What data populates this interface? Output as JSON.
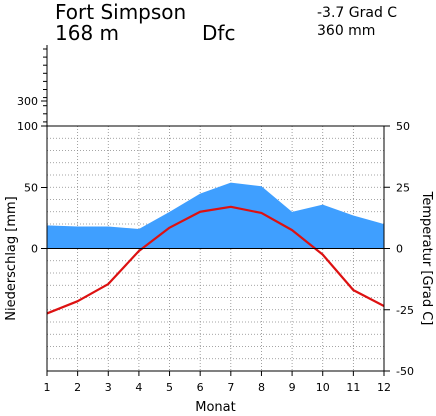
{
  "header": {
    "station": "Fort Simpson",
    "elevation": "168 m",
    "climate_class": "Dfc",
    "mean_temp": "-3.7 Grad C",
    "annual_precip": "360 mm"
  },
  "colors": {
    "precip_fill": "#3f9fff",
    "temp_line": "#dd1111",
    "grid": "#888888"
  },
  "chart_data": {
    "type": "area",
    "xlabel": "Monat",
    "ylabel_left": "Niederschlag [mm]",
    "ylabel_right": "Temperatur [Grad C]",
    "x": [
      1,
      2,
      3,
      4,
      5,
      6,
      7,
      8,
      9,
      10,
      11,
      12
    ],
    "x_ticks": [
      "1",
      "2",
      "3",
      "4",
      "5",
      "6",
      "7",
      "8",
      "9",
      "10",
      "11",
      "12"
    ],
    "left_ticks": [
      "300",
      "100",
      "50",
      "0"
    ],
    "right_ticks": [
      "50",
      "25",
      "0",
      "-25",
      "-50"
    ],
    "precip_range": [
      0,
      100
    ],
    "temp_range": [
      -50,
      50
    ],
    "series": [
      {
        "values": [
          19,
          18,
          18,
          16,
          30,
          45,
          54,
          51,
          30,
          36,
          27,
          20
        ]
      },
      {
        "values": [
          -26.5,
          -21.5,
          -14.5,
          -1,
          8.5,
          15,
          17,
          14.5,
          7.5,
          -2.5,
          -17,
          -23.5
        ]
      }
    ]
  }
}
